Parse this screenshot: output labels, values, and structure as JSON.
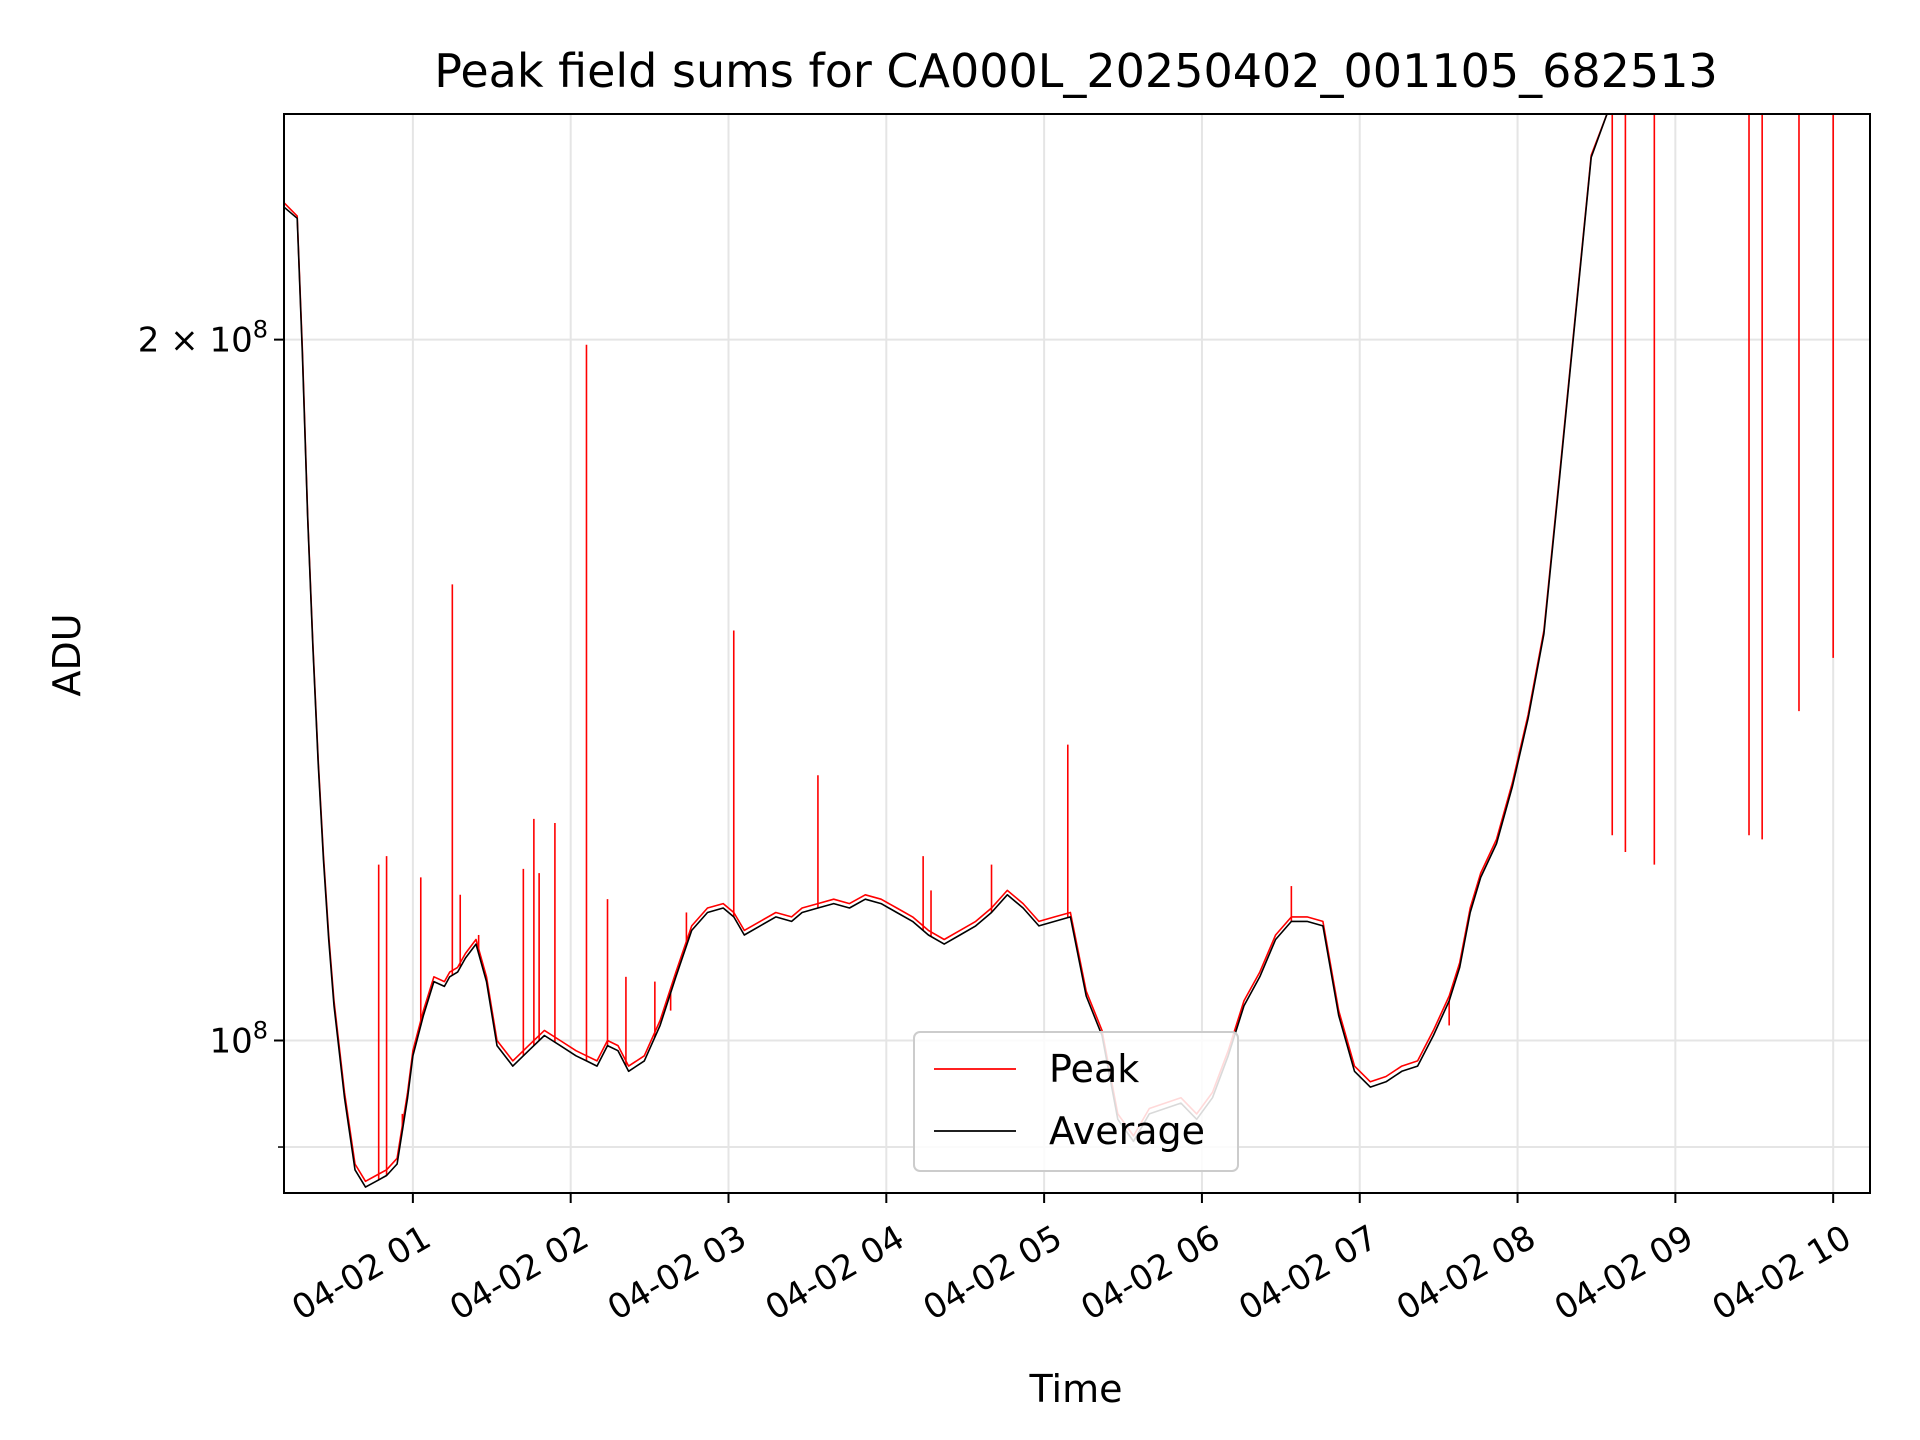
{
  "chart_data": {
    "type": "line",
    "title": "Peak field sums for CA000L_20250402_001105_682513",
    "xlabel": "Time",
    "ylabel": "ADU",
    "yscale": "log",
    "ylim": [
      86000000,
      250000000
    ],
    "xlim": [
      "2025-04-02 00:11",
      "2025-04-02 10:14"
    ],
    "grid": true,
    "legend": "bottom-center",
    "x_tick_labels": [
      "04-02 01",
      "04-02 02",
      "04-02 03",
      "04-02 04",
      "04-02 05",
      "04-02 06",
      "04-02 07",
      "04-02 08",
      "04-02 09",
      "04-02 10"
    ],
    "y_tick_labels": [
      {
        "value": 100000000,
        "mantissa": "",
        "exponent": "8",
        "base": "10"
      },
      {
        "value": 200000000,
        "mantissa": "2 × ",
        "exponent": "8",
        "base": "10"
      }
    ],
    "y_minor_ticks": [
      90000000
    ],
    "colors": {
      "peak": "#ff0000",
      "average": "#000000",
      "grid": "#e5e5e5"
    },
    "series": [
      {
        "name": "Peak",
        "color": "#ff0000",
        "x": [
          "00:11",
          "00:16",
          "00:18",
          "00:20",
          "00:22",
          "00:24",
          "00:26",
          "00:28",
          "00:30",
          "00:34",
          "00:38",
          "00:42",
          "00:46",
          "00:50",
          "00:54",
          "00:58",
          "01:00",
          "01:04",
          "01:08",
          "01:12",
          "01:14",
          "01:17",
          "01:20",
          "01:24",
          "01:28",
          "01:32",
          "01:38",
          "01:44",
          "01:50",
          "01:56",
          "02:02",
          "02:06",
          "02:10",
          "02:14",
          "02:18",
          "02:22",
          "02:28",
          "02:34",
          "02:40",
          "02:46",
          "02:52",
          "02:58",
          "03:02",
          "03:06",
          "03:12",
          "03:18",
          "03:24",
          "03:28",
          "03:34",
          "03:40",
          "03:46",
          "03:52",
          "03:58",
          "04:04",
          "04:10",
          "04:16",
          "04:22",
          "04:28",
          "04:34",
          "04:40",
          "04:46",
          "04:52",
          "04:58",
          "05:04",
          "05:10",
          "05:16",
          "05:22",
          "05:28",
          "05:34",
          "05:40",
          "05:46",
          "05:52",
          "05:58",
          "06:04",
          "06:10",
          "06:16",
          "06:22",
          "06:28",
          "06:34",
          "06:40",
          "06:46",
          "06:52",
          "06:58",
          "07:04",
          "07:10",
          "07:16",
          "07:22",
          "07:28",
          "07:34",
          "07:38",
          "07:42",
          "07:46",
          "07:52",
          "07:58",
          "08:04",
          "08:10",
          "08:16",
          "08:22",
          "08:28",
          "08:34",
          "08:40",
          "08:46",
          "08:52",
          "08:58",
          "09:04",
          "09:10",
          "09:16",
          "09:22",
          "09:28",
          "09:34",
          "09:40",
          "09:46",
          "09:52",
          "09:58",
          "10:04",
          "10:08",
          "10:10",
          "10:12",
          "10:14"
        ],
        "y": [
          229000000,
          226000000,
          198000000,
          168000000,
          148000000,
          132000000,
          120000000,
          111000000,
          104000000,
          95000000,
          88500000,
          87000000,
          87500000,
          88000000,
          89000000,
          95000000,
          99000000,
          103000000,
          106500000,
          106000000,
          107000000,
          107500000,
          109000000,
          110500000,
          106500000,
          100000000,
          98000000,
          99500000,
          101000000,
          100000000,
          99000000,
          98500000,
          98000000,
          100000000,
          99500000,
          97500000,
          98500000,
          102000000,
          107000000,
          112000000,
          114000000,
          114500000,
          113500000,
          111500000,
          112500000,
          113500000,
          113000000,
          114000000,
          114500000,
          115000000,
          114500000,
          115500000,
          115000000,
          114000000,
          113000000,
          111500000,
          110500000,
          111500000,
          112500000,
          114000000,
          116000000,
          114500000,
          112500000,
          113000000,
          113500000,
          105000000,
          101000000,
          93000000,
          91000000,
          93500000,
          94000000,
          94500000,
          93000000,
          95000000,
          99000000,
          104000000,
          107000000,
          111000000,
          113000000,
          113000000,
          112500000,
          103000000,
          97500000,
          96000000,
          96500000,
          97500000,
          98000000,
          101000000,
          104500000,
          108000000,
          114000000,
          118000000,
          122000000,
          129000000,
          138000000,
          150000000,
          175000000,
          205000000,
          240000000,
          250000000,
          250000000,
          250000000,
          250000000,
          250000000,
          250000000,
          250000000,
          250000000,
          250000000,
          250000000,
          250000000,
          250000000,
          250000000,
          250000000,
          250000000,
          250000000,
          250000000,
          250000000,
          250000000,
          250000000
        ],
        "spikes": [
          {
            "t": "00:47",
            "y": 119000000
          },
          {
            "t": "00:50",
            "y": 120000000
          },
          {
            "t": "00:56",
            "y": 93000000
          },
          {
            "t": "01:03",
            "y": 117500000
          },
          {
            "t": "01:15",
            "y": 157000000
          },
          {
            "t": "01:18",
            "y": 115500000
          },
          {
            "t": "01:25",
            "y": 111000000
          },
          {
            "t": "01:42",
            "y": 118500000
          },
          {
            "t": "01:46",
            "y": 124500000
          },
          {
            "t": "01:48",
            "y": 118000000
          },
          {
            "t": "01:54",
            "y": 124000000
          },
          {
            "t": "02:06",
            "y": 199000000
          },
          {
            "t": "02:14",
            "y": 115000000
          },
          {
            "t": "02:21",
            "y": 106500000
          },
          {
            "t": "02:32",
            "y": 106000000
          },
          {
            "t": "02:38",
            "y": 103000000
          },
          {
            "t": "02:44",
            "y": 113500000
          },
          {
            "t": "03:02",
            "y": 150000000
          },
          {
            "t": "03:34",
            "y": 130000000
          },
          {
            "t": "04:14",
            "y": 120000000
          },
          {
            "t": "04:17",
            "y": 116000000
          },
          {
            "t": "04:40",
            "y": 119000000
          },
          {
            "t": "05:09",
            "y": 134000000
          },
          {
            "t": "06:34",
            "y": 116500000
          },
          {
            "t": "07:34",
            "y": 101500000
          },
          {
            "t": "08:36",
            "y": 122500000
          },
          {
            "t": "08:41",
            "y": 120500000
          },
          {
            "t": "08:52",
            "y": 119000000
          },
          {
            "t": "09:28",
            "y": 122500000
          },
          {
            "t": "09:33",
            "y": 122000000
          },
          {
            "t": "09:47",
            "y": 138500000
          },
          {
            "t": "10:00",
            "y": 146000000
          }
        ]
      },
      {
        "name": "Average",
        "color": "#000000",
        "x": [
          "00:11",
          "00:16",
          "00:18",
          "00:20",
          "00:22",
          "00:24",
          "00:26",
          "00:28",
          "00:30",
          "00:34",
          "00:38",
          "00:42",
          "00:46",
          "00:50",
          "00:54",
          "00:58",
          "01:00",
          "01:04",
          "01:08",
          "01:12",
          "01:14",
          "01:17",
          "01:20",
          "01:24",
          "01:28",
          "01:32",
          "01:38",
          "01:44",
          "01:50",
          "01:56",
          "02:02",
          "02:06",
          "02:10",
          "02:14",
          "02:18",
          "02:22",
          "02:28",
          "02:34",
          "02:40",
          "02:46",
          "02:52",
          "02:58",
          "03:02",
          "03:06",
          "03:12",
          "03:18",
          "03:24",
          "03:28",
          "03:34",
          "03:40",
          "03:46",
          "03:52",
          "03:58",
          "04:04",
          "04:10",
          "04:16",
          "04:22",
          "04:28",
          "04:34",
          "04:40",
          "04:46",
          "04:52",
          "04:58",
          "05:04",
          "05:10",
          "05:16",
          "05:22",
          "05:28",
          "05:34",
          "05:40",
          "05:46",
          "05:52",
          "05:58",
          "06:04",
          "06:10",
          "06:16",
          "06:22",
          "06:28",
          "06:34",
          "06:40",
          "06:46",
          "06:52",
          "06:58",
          "07:04",
          "07:10",
          "07:16",
          "07:22",
          "07:28",
          "07:34",
          "07:38",
          "07:42",
          "07:46",
          "07:52",
          "07:58",
          "08:04",
          "08:10",
          "08:16",
          "08:22",
          "08:28",
          "08:34",
          "08:40",
          "08:46",
          "08:52",
          "08:58",
          "09:04",
          "09:10",
          "09:16",
          "09:22",
          "09:28",
          "09:34",
          "09:40",
          "09:46",
          "09:52",
          "09:58",
          "10:04",
          "10:08",
          "10:10",
          "10:12",
          "10:14"
        ],
        "y": [
          228000000,
          225500000,
          197000000,
          167500000,
          147500000,
          131500000,
          119500000,
          110500000,
          103500000,
          94500000,
          88000000,
          86500000,
          87000000,
          87500000,
          88500000,
          94500000,
          98500000,
          102500000,
          106000000,
          105500000,
          106500000,
          107000000,
          108500000,
          110000000,
          106000000,
          99500000,
          97500000,
          99000000,
          100500000,
          99500000,
          98500000,
          98000000,
          97500000,
          99500000,
          99000000,
          97000000,
          98000000,
          101500000,
          106500000,
          111500000,
          113500000,
          114000000,
          113000000,
          111000000,
          112000000,
          113000000,
          112500000,
          113500000,
          114000000,
          114500000,
          114000000,
          115000000,
          114500000,
          113500000,
          112500000,
          111000000,
          110000000,
          111000000,
          112000000,
          113500000,
          115500000,
          114000000,
          112000000,
          112500000,
          113000000,
          104500000,
          100500000,
          92500000,
          90500000,
          93000000,
          93500000,
          94000000,
          92500000,
          94500000,
          98500000,
          103500000,
          106500000,
          110500000,
          112500000,
          112500000,
          112000000,
          102500000,
          97000000,
          95500000,
          96000000,
          97000000,
          97500000,
          100500000,
          104000000,
          107500000,
          113500000,
          117500000,
          121500000,
          128500000,
          137500000,
          149500000,
          174500000,
          204500000,
          239500000,
          250000000,
          250000000,
          250000000,
          250000000,
          250000000,
          250000000,
          250000000,
          250000000,
          250000000,
          250000000,
          250000000,
          250000000,
          250000000,
          250000000,
          250000000,
          250000000,
          250000000,
          250000000,
          250000000,
          250000000
        ]
      }
    ]
  }
}
